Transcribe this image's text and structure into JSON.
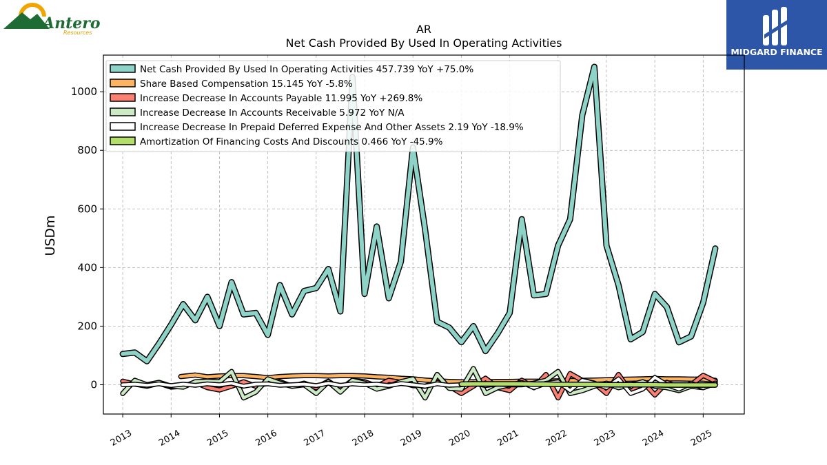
{
  "logos": {
    "left_brand": "Antero",
    "left_sub": "Resources",
    "right_brand": "MIDGARD FINANCE"
  },
  "colors": {
    "net_cash": "#8dd3c7",
    "share_based": "#fdb462",
    "payable": "#fb8072",
    "receivable": "#ccebc5",
    "prepaid": "#ffffff",
    "amortization": "#b3de69",
    "right_logo_bg": "#2d55a8",
    "left_logo_green": "#1e6b34",
    "left_logo_orange": "#f0a500"
  },
  "chart_data": {
    "type": "line",
    "title": "AR",
    "subtitle": "Net Cash Provided By Used In Operating Activities",
    "xlabel": "",
    "ylabel": "USDm",
    "xlim": [
      2012.6,
      2025.85
    ],
    "ylim": [
      -100,
      1125
    ],
    "yticks": [
      0,
      200,
      400,
      600,
      800,
      1000
    ],
    "xticks": [
      2013,
      2014,
      2015,
      2016,
      2017,
      2018,
      2019,
      2020,
      2021,
      2022,
      2023,
      2024,
      2025
    ],
    "grid": true,
    "legend_position": "top-left",
    "series": [
      {
        "name": "Net Cash Provided By Used In Operating Activities",
        "legend": "Net Cash Provided By Used In Operating Activities  457.739 YoY +75.0%",
        "color_key": "net_cash",
        "width": 6,
        "x": [
          2013.0,
          2013.25,
          2013.5,
          2013.75,
          2014.0,
          2014.25,
          2014.5,
          2014.75,
          2015.0,
          2015.25,
          2015.5,
          2015.75,
          2016.0,
          2016.25,
          2016.5,
          2016.75,
          2017.0,
          2017.25,
          2017.5,
          2017.75,
          2018.0,
          2018.25,
          2018.5,
          2018.75,
          2019.0,
          2019.25,
          2019.5,
          2019.75,
          2020.0,
          2020.25,
          2020.5,
          2020.75,
          2021.0,
          2021.25,
          2021.5,
          2021.75,
          2022.0,
          2022.25,
          2022.5,
          2022.75,
          2023.0,
          2023.25,
          2023.5,
          2023.75,
          2024.0,
          2024.25,
          2024.5,
          2024.75,
          2025.0,
          2025.25
        ],
        "y": [
          105,
          110,
          80,
          140,
          205,
          275,
          220,
          300,
          200,
          350,
          240,
          245,
          170,
          340,
          240,
          320,
          330,
          395,
          250,
          1050,
          310,
          540,
          295,
          420,
          810,
          530,
          215,
          195,
          145,
          200,
          115,
          175,
          245,
          565,
          305,
          310,
          475,
          565,
          920,
          1085,
          475,
          340,
          155,
          180,
          310,
          265,
          145,
          165,
          280,
          465
        ]
      },
      {
        "name": "Share Based Compensation",
        "legend": "Share Based Compensation  15.145 YoY -5.8%",
        "color_key": "share_based",
        "width": 4.5,
        "x": [
          2014.2,
          2014.5,
          2014.75,
          2015.0,
          2015.25,
          2015.5,
          2015.75,
          2016.0,
          2016.25,
          2016.5,
          2016.75,
          2017.0,
          2017.25,
          2017.5,
          2017.75,
          2018.0,
          2018.25,
          2018.5,
          2018.75,
          2019.0,
          2019.25,
          2019.5,
          2019.75,
          2020.0,
          2020.25,
          2020.5,
          2020.75,
          2021.0,
          2021.25,
          2021.5,
          2021.75,
          2022.0,
          2022.25,
          2022.5,
          2022.75,
          2023.0,
          2023.25,
          2023.5,
          2023.75,
          2024.0,
          2024.25,
          2024.5,
          2024.75,
          2025.0,
          2025.25
        ],
        "y": [
          28,
          33,
          27,
          30,
          31,
          31,
          28,
          24,
          28,
          30,
          31,
          31,
          30,
          31,
          31,
          30,
          27,
          25,
          22,
          20,
          16,
          13,
          11,
          10,
          10,
          10,
          11,
          11,
          12,
          12,
          12,
          13,
          14,
          15,
          16,
          17,
          18,
          19,
          20,
          21,
          20,
          20,
          19,
          19,
          15
        ]
      },
      {
        "name": "Increase Decrease In Accounts Payable",
        "legend": "Increase Decrease In Accounts Payable  11.995 YoY +269.8%",
        "color_key": "payable",
        "width": 4.5,
        "x": [
          2013.0,
          2013.25,
          2013.5,
          2013.75,
          2014.0,
          2014.25,
          2014.5,
          2014.75,
          2015.0,
          2015.25,
          2015.5,
          2015.75,
          2016.0,
          2016.25,
          2016.5,
          2016.75,
          2017.0,
          2017.25,
          2017.5,
          2017.75,
          2018.0,
          2018.25,
          2018.5,
          2018.75,
          2019.0,
          2019.25,
          2019.5,
          2019.75,
          2020.0,
          2020.25,
          2020.5,
          2020.75,
          2021.0,
          2021.25,
          2021.5,
          2021.75,
          2022.0,
          2022.25,
          2022.5,
          2022.75,
          2023.0,
          2023.25,
          2023.5,
          2023.75,
          2024.0,
          2024.25,
          2024.5,
          2024.75,
          2025.0,
          2025.25
        ],
        "y": [
          12,
          2,
          -5,
          5,
          -8,
          -5,
          8,
          -10,
          -18,
          -5,
          10,
          -5,
          5,
          10,
          -5,
          5,
          -10,
          12,
          -15,
          15,
          10,
          -5,
          15,
          8,
          -3,
          -5,
          8,
          -5,
          -30,
          -5,
          22,
          -10,
          -20,
          15,
          -10,
          35,
          -45,
          38,
          15,
          5,
          -30,
          35,
          -25,
          10,
          -35,
          8,
          -10,
          0,
          32,
          12
        ]
      },
      {
        "name": "Increase Decrease In Accounts Receivable",
        "legend": "Increase Decrease In Accounts Receivable  5.972 YoY N/A",
        "color_key": "receivable",
        "width": 4.5,
        "x": [
          2013.0,
          2013.25,
          2013.5,
          2013.75,
          2014.0,
          2014.25,
          2014.5,
          2014.75,
          2015.0,
          2015.25,
          2015.5,
          2015.75,
          2016.0,
          2016.25,
          2016.5,
          2016.75,
          2017.0,
          2017.25,
          2017.5,
          2017.75,
          2018.0,
          2018.25,
          2018.5,
          2018.75,
          2019.0,
          2019.25,
          2019.5,
          2019.75,
          2020.0,
          2020.25,
          2020.5,
          2020.75,
          2021.0,
          2021.25,
          2021.5,
          2021.75,
          2022.0,
          2022.25,
          2022.5,
          2022.75,
          2023.0,
          2023.25,
          2023.5,
          2023.75,
          2024.0,
          2024.25,
          2024.5,
          2024.75,
          2025.0,
          2025.25
        ],
        "y": [
          -30,
          15,
          0,
          8,
          -5,
          -8,
          10,
          12,
          10,
          45,
          -45,
          -25,
          20,
          5,
          -5,
          0,
          -30,
          10,
          -25,
          15,
          5,
          -15,
          -5,
          10,
          20,
          -45,
          35,
          -12,
          -15,
          55,
          -30,
          -10,
          0,
          0,
          5,
          15,
          45,
          -30,
          -20,
          -5,
          5,
          -10,
          0,
          10,
          -5,
          -10,
          -20,
          -5,
          -10,
          5
        ]
      },
      {
        "name": "Increase Decrease In Prepaid Deferred Expense And Other Assets",
        "legend": "Increase Decrease In Prepaid Deferred Expense And Other Assets  2.19 YoY -18.9%",
        "color_key": "prepaid",
        "width": 4,
        "x": [
          2013.0,
          2013.25,
          2013.5,
          2013.75,
          2014.0,
          2014.25,
          2014.5,
          2014.75,
          2015.0,
          2015.25,
          2015.5,
          2015.75,
          2016.0,
          2016.25,
          2016.5,
          2016.75,
          2017.0,
          2017.25,
          2017.5,
          2017.75,
          2018.0,
          2018.25,
          2018.5,
          2018.75,
          2019.0,
          2019.25,
          2019.5,
          2019.75,
          2020.0,
          2020.25,
          2020.5,
          2020.75,
          2021.0,
          2021.25,
          2021.5,
          2021.75,
          2022.0,
          2022.25,
          2022.5,
          2022.75,
          2023.0,
          2023.25,
          2023.5,
          2023.75,
          2024.0,
          2024.25,
          2024.5,
          2024.75,
          2025.0,
          2025.25
        ],
        "y": [
          0,
          2,
          -2,
          3,
          -3,
          2,
          -2,
          3,
          0,
          5,
          -5,
          2,
          3,
          -2,
          0,
          2,
          -3,
          5,
          -2,
          3,
          0,
          2,
          -3,
          4,
          0,
          -5,
          3,
          -2,
          0,
          5,
          -3,
          2,
          0,
          8,
          -10,
          5,
          10,
          -20,
          15,
          5,
          -10,
          20,
          -30,
          -15,
          25,
          0,
          -15,
          5,
          -10,
          5
        ]
      },
      {
        "name": "Amortization Of Financing Costs And Discounts",
        "legend": "Amortization Of Financing Costs And Discounts  0.466 YoY -45.9%",
        "color_key": "amortization",
        "width": 5,
        "x": [
          2020.0,
          2020.25,
          2020.5,
          2020.75,
          2021.0,
          2021.25,
          2021.5,
          2021.75,
          2022.0,
          2022.25,
          2022.5,
          2022.75,
          2023.0,
          2023.25,
          2023.5,
          2023.75,
          2024.0,
          2024.25,
          2024.5,
          2024.75,
          2025.0,
          2025.25
        ],
        "y": [
          2,
          3,
          3,
          3,
          3,
          3,
          2,
          2,
          1,
          1,
          1,
          1,
          0,
          0,
          0,
          0,
          0,
          -1,
          -1,
          -1,
          -1,
          -1
        ]
      }
    ]
  }
}
